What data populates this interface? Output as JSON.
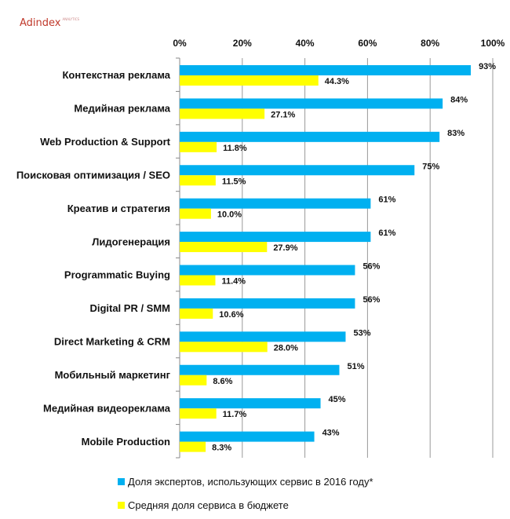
{
  "logo": {
    "name": "Adindex",
    "sub": "ANALYTICS"
  },
  "chart_data": {
    "type": "bar",
    "orientation": "horizontal",
    "categories": [
      "Контекстная реклама",
      "Медийная реклама",
      "Web Production & Support",
      "Поисковая оптимизация / SEO",
      "Креатив и стратегия",
      "Лидогенерация",
      "Programmatic Buying",
      "Digital PR / SMM",
      "Direct Marketing & CRM",
      "Мобильный маркетинг",
      "Медийная видеореклама",
      "Mobile Production"
    ],
    "series": [
      {
        "name": "Доля экспертов, использующих сервис в 2016 году*",
        "color": "#00b0f0",
        "values": [
          93,
          84,
          83,
          75,
          61,
          61,
          56,
          56,
          53,
          51,
          45,
          43
        ],
        "labels": [
          "93%",
          "84%",
          "83%",
          "75%",
          "61%",
          "61%",
          "56%",
          "56%",
          "53%",
          "51%",
          "45%",
          "43%"
        ]
      },
      {
        "name": "Средняя доля сервиса в бюджете",
        "color": "#ffff00",
        "values": [
          44.3,
          27.1,
          11.8,
          11.5,
          10.0,
          27.9,
          11.4,
          10.6,
          28.0,
          8.6,
          11.7,
          8.3
        ],
        "labels": [
          "44.3%",
          "27.1%",
          "11.8%",
          "11.5%",
          "10.0%",
          "27.9%",
          "11.4%",
          "10.6%",
          "28.0%",
          "8.6%",
          "11.7%",
          "8.3%"
        ]
      }
    ],
    "xlim": [
      0,
      100
    ],
    "xticks": [
      "0%",
      "20%",
      "40%",
      "60%",
      "80%",
      "100%"
    ],
    "xaxis_position": "top",
    "grid": true,
    "legend": "bottom"
  }
}
